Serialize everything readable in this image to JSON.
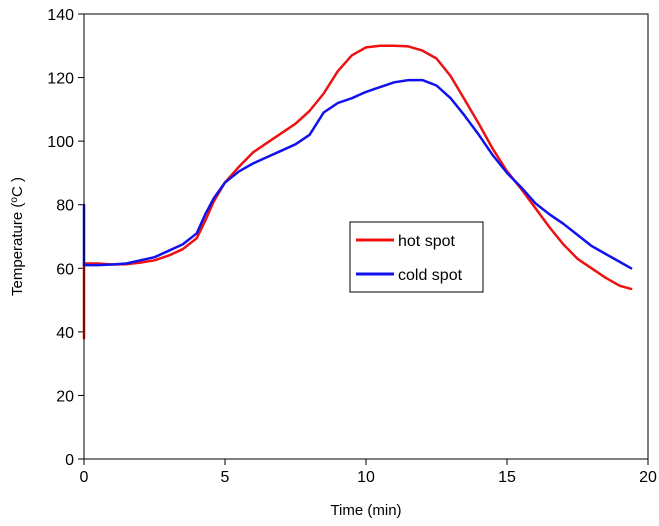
{
  "chart_data": {
    "type": "line",
    "title": "",
    "xlabel": "Time (min)",
    "ylabel_parts": {
      "before": "Temperature (",
      "sup": "o",
      "after": "C )"
    },
    "xlim": [
      0,
      20
    ],
    "ylim": [
      0,
      140
    ],
    "xticks": [
      "0",
      "5",
      "10",
      "15",
      "20"
    ],
    "yticks": [
      "0",
      "20",
      "40",
      "60",
      "80",
      "100",
      "120",
      "140"
    ],
    "grid": false,
    "legend_position": "center-right",
    "series": [
      {
        "name": "hot spot",
        "color": "#ee1111",
        "x": [
          0.0,
          0.0,
          0.0,
          0.0,
          0.5,
          1.0,
          1.5,
          2.0,
          2.5,
          3.0,
          3.5,
          4.0,
          4.3,
          4.6,
          5.0,
          5.5,
          6.0,
          6.5,
          7.0,
          7.5,
          8.0,
          8.5,
          9.0,
          9.5,
          10.0,
          10.5,
          11.0,
          11.5,
          12.0,
          12.5,
          13.0,
          13.5,
          14.0,
          14.5,
          15.0,
          15.5,
          16.0,
          16.5,
          17.0,
          17.5,
          18.0,
          18.5,
          19.0,
          19.4
        ],
        "y": [
          61,
          38,
          50,
          61.5,
          61.5,
          61.2,
          61.3,
          61.8,
          62.5,
          64,
          66,
          69.5,
          75,
          81,
          87,
          92,
          96.5,
          99.5,
          102.5,
          105.5,
          109.5,
          115,
          122,
          127,
          129.5,
          130,
          130,
          129.8,
          128.5,
          126,
          120.5,
          113,
          105.5,
          97.5,
          90.5,
          85,
          79,
          73,
          67.5,
          63,
          60,
          57,
          54.5,
          53.5
        ]
      },
      {
        "name": "cold spot",
        "color": "#1111ee",
        "x": [
          0.0,
          0.0,
          0.0,
          0.5,
          1.0,
          1.5,
          2.0,
          2.5,
          3.0,
          3.5,
          4.0,
          4.3,
          4.6,
          5.0,
          5.5,
          6.0,
          6.5,
          7.0,
          7.5,
          8.0,
          8.5,
          9.0,
          9.5,
          10.0,
          10.5,
          11.0,
          11.5,
          12.0,
          12.5,
          13.0,
          13.5,
          14.0,
          14.5,
          15.0,
          15.5,
          16.0,
          16.5,
          17.0,
          17.5,
          18.0,
          18.5,
          19.0,
          19.4
        ],
        "y": [
          80,
          61,
          61,
          61,
          61.2,
          61.5,
          62.5,
          63.5,
          65.5,
          67.5,
          71,
          77,
          82,
          87,
          90.5,
          93,
          95,
          97,
          99,
          102,
          109,
          112,
          113.5,
          115.5,
          117,
          118.5,
          119.2,
          119.2,
          117.5,
          113.5,
          108,
          102,
          95.5,
          90,
          85.5,
          80.5,
          77,
          74,
          70.5,
          67,
          64.5,
          62,
          60
        ]
      }
    ]
  }
}
